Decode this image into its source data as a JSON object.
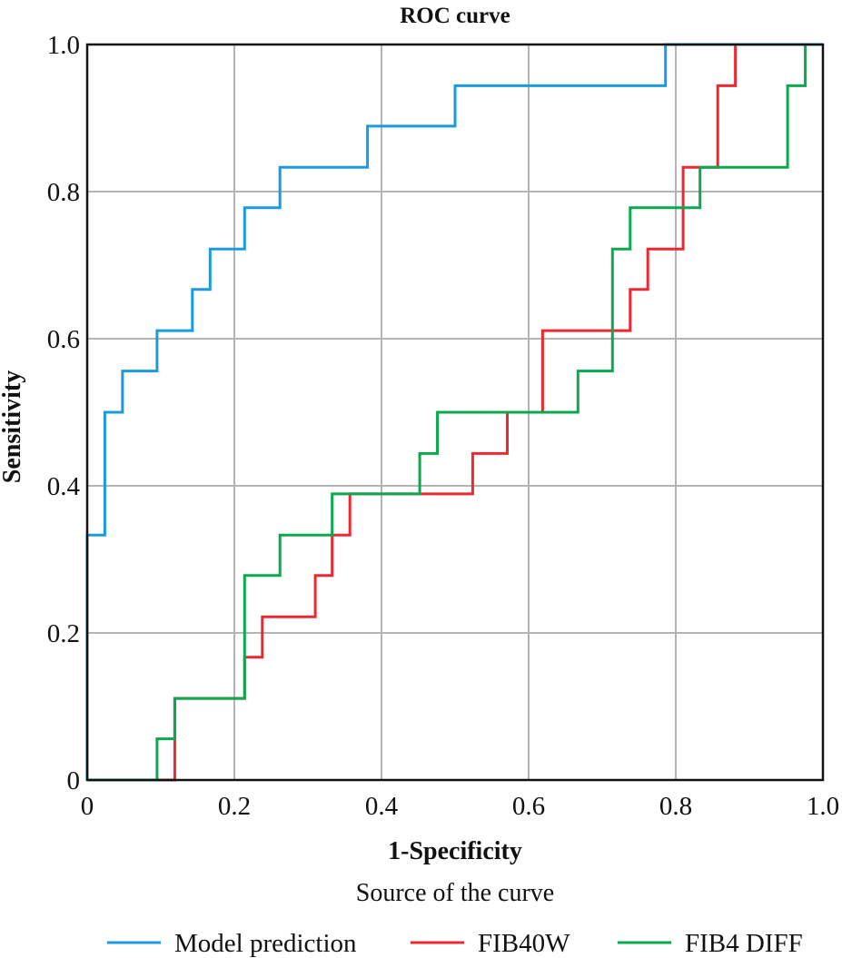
{
  "chart_data": {
    "type": "line",
    "title": "ROC curve",
    "xlabel": "1-Specificity",
    "ylabel": "Sensitivity",
    "xlim": [
      0,
      1
    ],
    "ylim": [
      0,
      1
    ],
    "grid": true,
    "x_ticks": [
      0,
      0.2,
      0.4,
      0.6,
      0.8,
      1.0
    ],
    "x_tick_labels": [
      "0",
      "0.2",
      "0.4",
      "0.6",
      "0.8",
      "1.0"
    ],
    "y_ticks": [
      0,
      0.2,
      0.4,
      0.6,
      0.8,
      1.0
    ],
    "y_tick_labels": [
      "0",
      "0.2",
      "0.4",
      "0.6",
      "0.8",
      "1.0"
    ],
    "legend_title": "Source of the curve",
    "legend_position": "bottom",
    "series": [
      {
        "name": "Model prediction",
        "color": "#1a9be0",
        "step_points": [
          [
            0,
            0
          ],
          [
            0,
            0.333
          ],
          [
            0.024,
            0.333
          ],
          [
            0.024,
            0.5
          ],
          [
            0.048,
            0.5
          ],
          [
            0.048,
            0.556
          ],
          [
            0.095,
            0.556
          ],
          [
            0.095,
            0.611
          ],
          [
            0.143,
            0.611
          ],
          [
            0.143,
            0.667
          ],
          [
            0.167,
            0.667
          ],
          [
            0.167,
            0.722
          ],
          [
            0.214,
            0.722
          ],
          [
            0.214,
            0.778
          ],
          [
            0.262,
            0.778
          ],
          [
            0.262,
            0.833
          ],
          [
            0.381,
            0.833
          ],
          [
            0.381,
            0.889
          ],
          [
            0.5,
            0.889
          ],
          [
            0.5,
            0.944
          ],
          [
            0.786,
            0.944
          ],
          [
            0.786,
            1.0
          ],
          [
            1.0,
            1.0
          ]
        ]
      },
      {
        "name": "FIB40W",
        "color": "#ec2830",
        "step_points": [
          [
            0,
            0
          ],
          [
            0.119,
            0
          ],
          [
            0.119,
            0.056
          ],
          [
            0.119,
            0.111
          ],
          [
            0.214,
            0.111
          ],
          [
            0.214,
            0.167
          ],
          [
            0.238,
            0.167
          ],
          [
            0.238,
            0.222
          ],
          [
            0.31,
            0.222
          ],
          [
            0.31,
            0.278
          ],
          [
            0.333,
            0.278
          ],
          [
            0.333,
            0.333
          ],
          [
            0.357,
            0.333
          ],
          [
            0.357,
            0.389
          ],
          [
            0.524,
            0.389
          ],
          [
            0.524,
            0.444
          ],
          [
            0.571,
            0.444
          ],
          [
            0.571,
            0.5
          ],
          [
            0.619,
            0.5
          ],
          [
            0.619,
            0.611
          ],
          [
            0.738,
            0.611
          ],
          [
            0.738,
            0.667
          ],
          [
            0.762,
            0.667
          ],
          [
            0.762,
            0.722
          ],
          [
            0.81,
            0.722
          ],
          [
            0.81,
            0.833
          ],
          [
            0.857,
            0.833
          ],
          [
            0.857,
            0.944
          ],
          [
            0.881,
            0.944
          ],
          [
            0.881,
            1.0
          ],
          [
            1.0,
            1.0
          ]
        ]
      },
      {
        "name": "FIB4 DIFF",
        "color": "#0ba84e",
        "step_points": [
          [
            0,
            0
          ],
          [
            0.095,
            0
          ],
          [
            0.095,
            0.056
          ],
          [
            0.119,
            0.056
          ],
          [
            0.119,
            0.111
          ],
          [
            0.214,
            0.111
          ],
          [
            0.214,
            0.278
          ],
          [
            0.262,
            0.278
          ],
          [
            0.262,
            0.333
          ],
          [
            0.333,
            0.333
          ],
          [
            0.333,
            0.389
          ],
          [
            0.452,
            0.389
          ],
          [
            0.452,
            0.444
          ],
          [
            0.476,
            0.444
          ],
          [
            0.476,
            0.5
          ],
          [
            0.667,
            0.5
          ],
          [
            0.667,
            0.556
          ],
          [
            0.714,
            0.556
          ],
          [
            0.714,
            0.722
          ],
          [
            0.738,
            0.722
          ],
          [
            0.738,
            0.778
          ],
          [
            0.833,
            0.778
          ],
          [
            0.833,
            0.833
          ],
          [
            0.952,
            0.833
          ],
          [
            0.952,
            0.944
          ],
          [
            0.976,
            0.944
          ],
          [
            0.976,
            1.0
          ],
          [
            1.0,
            1.0
          ]
        ]
      }
    ]
  }
}
